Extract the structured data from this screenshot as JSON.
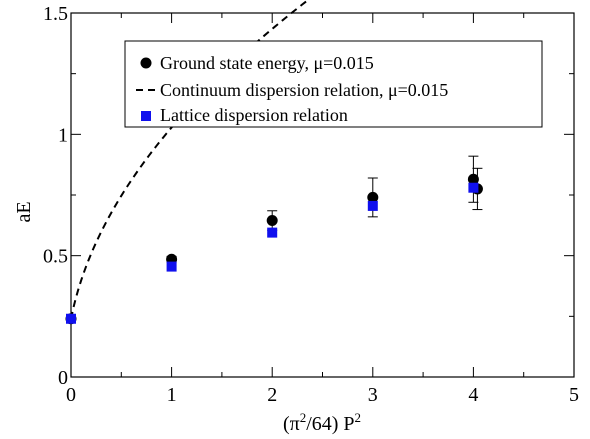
{
  "chart_data": {
    "type": "scatter",
    "xlabel_main": "(π",
    "xlabel_sup1": "2",
    "xlabel_mid": "/64) P",
    "xlabel_sup2": "2",
    "ylabel": "aE",
    "xlim": [
      0,
      5
    ],
    "ylim": [
      0,
      1.5
    ],
    "x_ticks": [
      0,
      1,
      2,
      3,
      4,
      5
    ],
    "x_tick_labels": [
      "0",
      "1",
      "2",
      "3",
      "4",
      "5"
    ],
    "y_ticks": [
      0,
      0.5,
      1,
      1.5
    ],
    "y_tick_labels": [
      "0",
      "0.5",
      "1",
      "1.5"
    ],
    "grid": false,
    "legend_position": "top",
    "series": [
      {
        "name": "Ground state energy, μ=0.015",
        "marker": "circle",
        "color": "#000000",
        "x": [
          0,
          1,
          2,
          3,
          4,
          4.04
        ],
        "y": [
          0.24,
          0.485,
          0.645,
          0.74,
          0.815,
          0.775
        ],
        "err": [
          0.005,
          0.012,
          0.04,
          0.08,
          0.095,
          0.085
        ]
      },
      {
        "name": "Continuum dispersion relation, μ=0.015",
        "marker": "dashed-line",
        "color": "#000000",
        "ground_mass": 0.24,
        "x_max": 5
      },
      {
        "name": "Lattice dispersion relation",
        "marker": "square",
        "color": "#1010ee",
        "x": [
          0,
          1,
          2,
          3,
          4
        ],
        "y": [
          0.24,
          0.455,
          0.595,
          0.705,
          0.78
        ]
      }
    ]
  }
}
